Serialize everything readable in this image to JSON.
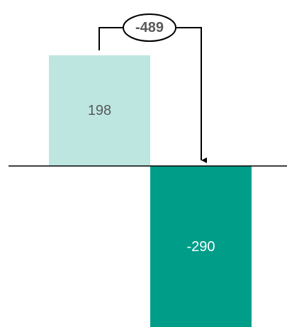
{
  "chart_data": {
    "type": "bar",
    "categories": [
      "",
      ""
    ],
    "values": [
      198,
      -290
    ],
    "data_labels": [
      "198",
      "-290"
    ],
    "difference": {
      "value": -489,
      "label": "-489",
      "from_index": 0,
      "to_index": 1
    },
    "title": "",
    "xlabel": "",
    "ylabel": "",
    "grid": false,
    "legend": "none"
  },
  "colors": {
    "bar_positive": "#bde6e1",
    "bar_negative": "#009e89",
    "label_on_light": "#595959",
    "label_on_dark": "#ffffff",
    "axis": "#000000",
    "annotation": "#000000",
    "difference_text": "#595959"
  }
}
